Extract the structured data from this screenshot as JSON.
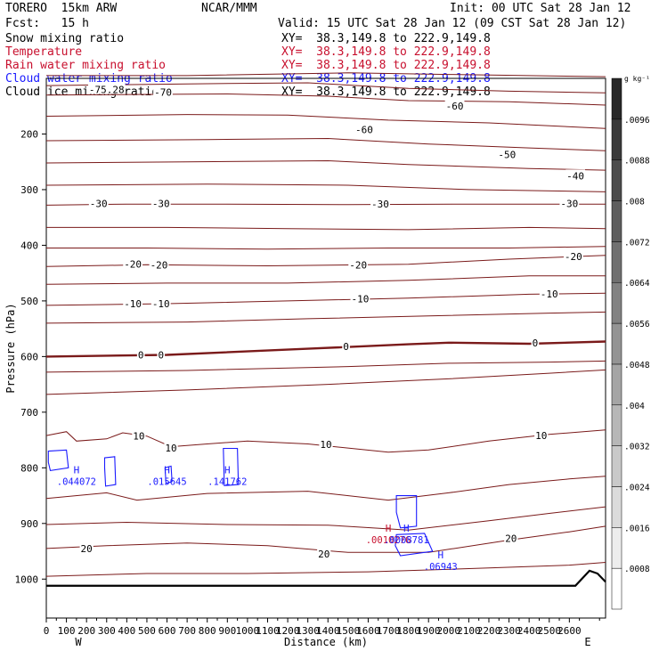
{
  "header": {
    "model": "TORERO  15km ARW",
    "org": "NCAR/MMM",
    "init": "Init: 00 UTC Sat 28 Jan 12",
    "fcst": "Fcst:   15 h",
    "valid": "Valid: 15 UTC Sat 28 Jan 12 (09 CST Sat 28 Jan 12)"
  },
  "fields": [
    {
      "name": "Snow mixing ratio",
      "xy": "XY=  38.3,149.8 to 222.9,149.8",
      "color": "#000000"
    },
    {
      "name": "Temperature",
      "xy": "XY=  38.3,149.8 to 222.9,149.8",
      "color": "#c8102e"
    },
    {
      "name": "Rain water mixing ratio",
      "xy": "XY=  38.3,149.8 to 222.9,149.8",
      "color": "#c8102e"
    },
    {
      "name": "Cloud water mixing ratio",
      "xy": "XY=  38.3,149.8 to 222.9,149.8",
      "color": "#1a1aff"
    },
    {
      "name": "Cloud ice mixing ratio",
      "xy": "XY=  38.3,149.8 to 222.9,149.8",
      "color": "#000000"
    }
  ],
  "chart_data": {
    "type": "contour-cross-section",
    "xlabel": "Distance (km)",
    "ylabel": "Pressure (hPa)",
    "xlim": [
      0,
      2780
    ],
    "ylim": [
      1070,
      100
    ],
    "x_ticks": [
      0,
      100,
      200,
      300,
      400,
      500,
      600,
      700,
      800,
      900,
      1000,
      1100,
      1200,
      1300,
      1400,
      1500,
      1600,
      1700,
      1800,
      1900,
      2000,
      2100,
      2200,
      2300,
      2400,
      2500,
      2600
    ],
    "x_tick_labels": [
      "0",
      "100",
      "200",
      "300",
      "400",
      "500",
      "600",
      "700",
      "800",
      "900",
      "1000",
      "1100",
      "1200",
      "1300",
      "1400",
      "1500",
      "1600",
      "1700",
      "1800",
      "1900",
      "2000",
      "2100",
      "2200",
      "2300",
      "2400",
      "2500",
      "2600"
    ],
    "y_ticks": [
      200,
      300,
      400,
      500,
      600,
      700,
      800,
      900,
      1000
    ],
    "y_tick_labels": [
      "200",
      "300",
      "400",
      "500",
      "600",
      "700",
      "800",
      "900",
      "1000"
    ],
    "x_end_labels": {
      "left": "W",
      "right": "E"
    },
    "colorbar": {
      "unit": "g kg⁻¹",
      "levels": [
        ".0008",
        ".0016",
        ".0024",
        ".0032",
        ".004",
        ".0048",
        ".0056",
        ".0064",
        ".0072",
        ".008",
        ".0088",
        ".0096"
      ]
    },
    "temperature_labels": [
      {
        "text": "-75.28",
        "x": 300,
        "p": 120
      },
      {
        "text": "-70",
        "x": 580,
        "p": 125
      },
      {
        "text": "-60",
        "x": 1580,
        "p": 192
      },
      {
        "text": "-60",
        "x": 2030,
        "p": 150
      },
      {
        "text": "-50",
        "x": 2290,
        "p": 237
      },
      {
        "text": "-40",
        "x": 2630,
        "p": 275
      },
      {
        "text": "-30",
        "x": 260,
        "p": 325
      },
      {
        "text": "-30",
        "x": 570,
        "p": 325
      },
      {
        "text": "-30",
        "x": 1660,
        "p": 326
      },
      {
        "text": "-30",
        "x": 2600,
        "p": 325
      },
      {
        "text": "-20",
        "x": 430,
        "p": 434
      },
      {
        "text": "-20",
        "x": 560,
        "p": 435
      },
      {
        "text": "-20",
        "x": 1550,
        "p": 435
      },
      {
        "text": "-20",
        "x": 2620,
        "p": 420
      },
      {
        "text": "-10",
        "x": 430,
        "p": 505
      },
      {
        "text": "-10",
        "x": 570,
        "p": 505
      },
      {
        "text": "-10",
        "x": 1560,
        "p": 496
      },
      {
        "text": "-10",
        "x": 2500,
        "p": 487
      },
      {
        "text": "0",
        "x": 470,
        "p": 597
      },
      {
        "text": "0",
        "x": 570,
        "p": 597
      },
      {
        "text": "0",
        "x": 1490,
        "p": 582
      },
      {
        "text": "0",
        "x": 2430,
        "p": 575
      },
      {
        "text": "10",
        "x": 460,
        "p": 743
      },
      {
        "text": "10",
        "x": 620,
        "p": 764
      },
      {
        "text": "10",
        "x": 1390,
        "p": 758
      },
      {
        "text": "10",
        "x": 2460,
        "p": 742
      },
      {
        "text": "20",
        "x": 200,
        "p": 945
      },
      {
        "text": "20",
        "x": 1380,
        "p": 955
      },
      {
        "text": "20",
        "x": 2310,
        "p": 927
      }
    ],
    "maxima": [
      {
        "mark": "H",
        "value": ".044072",
        "x": 150,
        "p": 810,
        "color": "#1a1aff"
      },
      {
        "mark": "H",
        "value": ".015645",
        "x": 600,
        "p": 810,
        "color": "#1a1aff"
      },
      {
        "mark": "H",
        "value": ".141762",
        "x": 900,
        "p": 810,
        "color": "#1a1aff"
      },
      {
        "mark": "H",
        "value": ".0010276",
        "x": 1700,
        "p": 915,
        "color": "#c8102e"
      },
      {
        "mark": "H",
        "value": ".0008781",
        "x": 1790,
        "p": 915,
        "color": "#1a1aff"
      },
      {
        "mark": "H",
        "value": ".06943",
        "x": 1960,
        "p": 963,
        "color": "#1a1aff"
      }
    ]
  }
}
